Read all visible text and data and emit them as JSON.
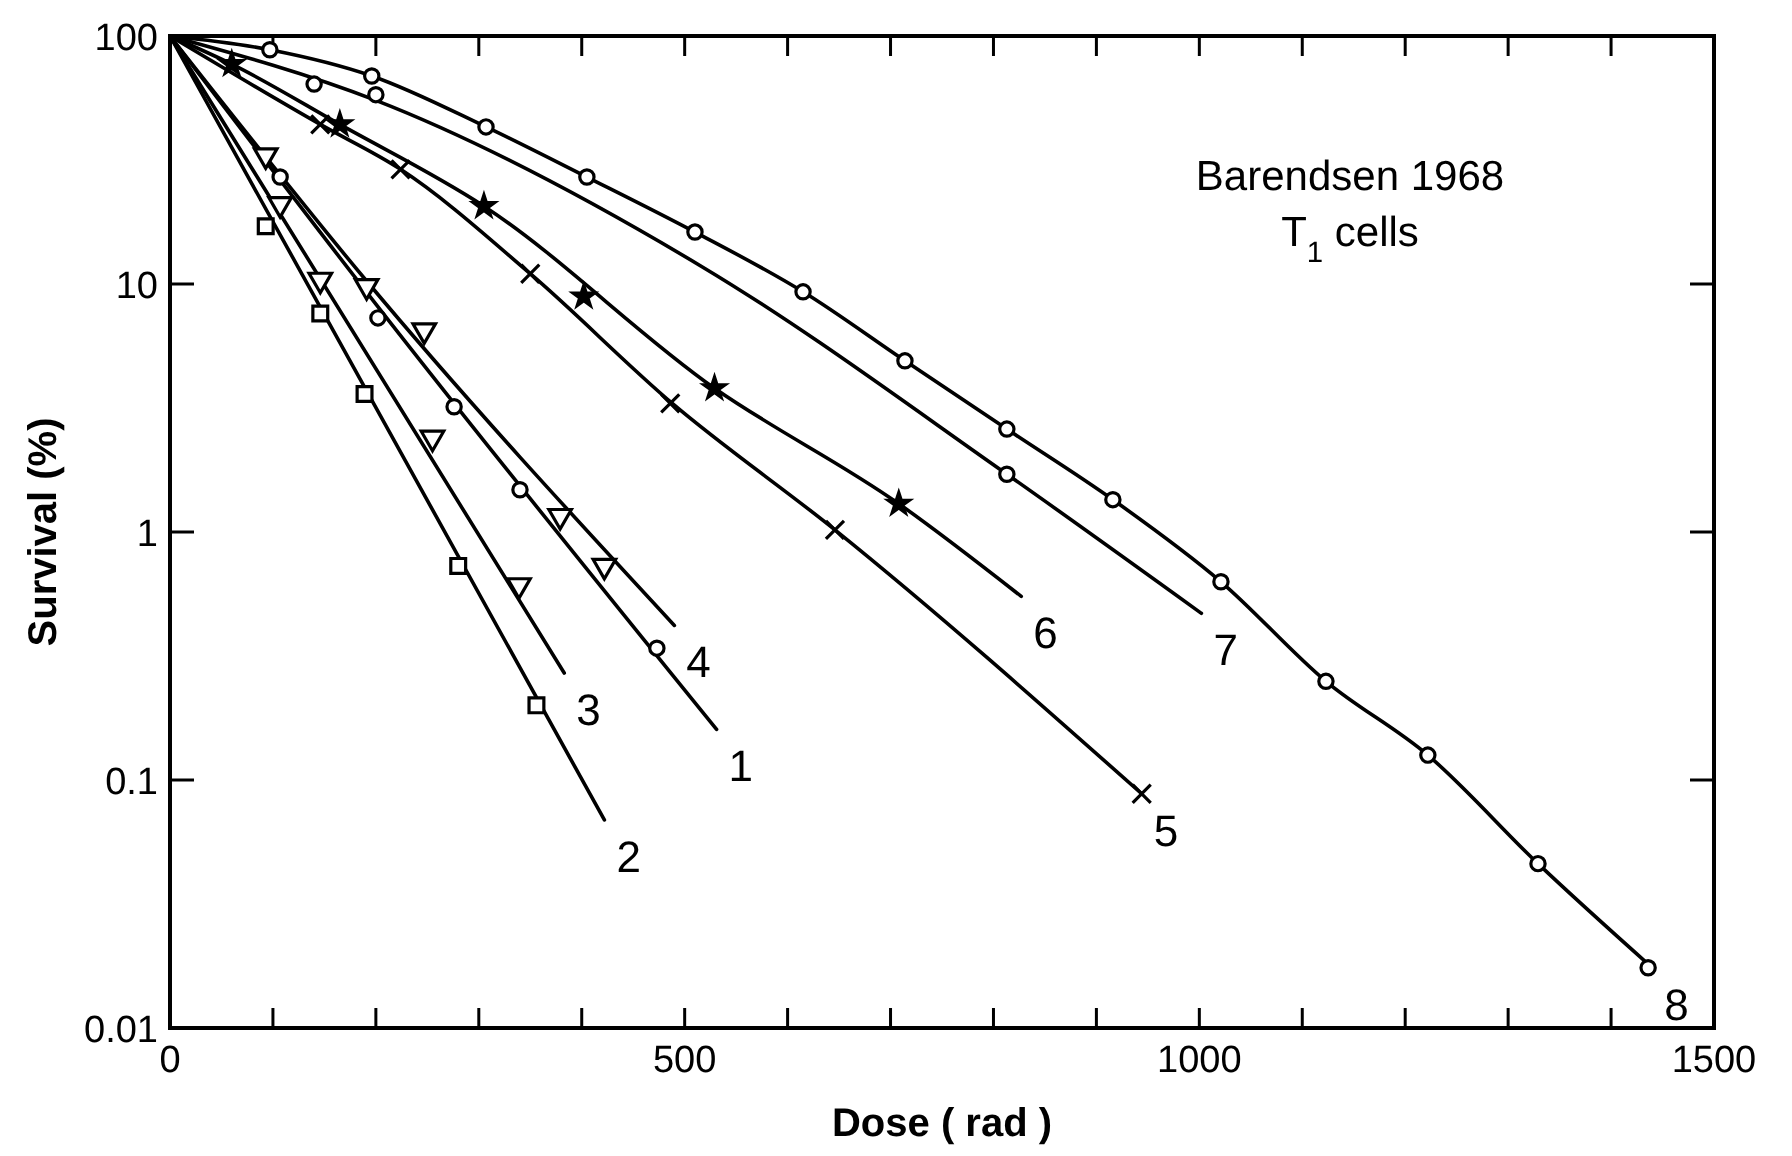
{
  "chart_data": {
    "type": "line",
    "xlabel": "Dose ( rad )",
    "ylabel": "Survival (%)",
    "log": "y",
    "grid": false,
    "xlim": [
      0,
      1500
    ],
    "ylim": [
      0.01,
      100
    ],
    "xticks": [
      0,
      {
        "value": 100,
        "label": null
      },
      {
        "value": 200,
        "label": null
      },
      {
        "value": 300,
        "label": null
      },
      {
        "value": 400,
        "label": null
      },
      500,
      {
        "value": 600,
        "label": null
      },
      {
        "value": 700,
        "label": null
      },
      {
        "value": 800,
        "label": null
      },
      {
        "value": 900,
        "label": null
      },
      1000,
      {
        "value": 1100,
        "label": null
      },
      {
        "value": 1200,
        "label": null
      },
      {
        "value": 1300,
        "label": null
      },
      {
        "value": 1400,
        "label": null
      },
      1500
    ],
    "yticks": [
      0.01,
      0.1,
      1,
      10,
      100
    ],
    "annotations": [
      "Barendsen 1968",
      "T$_{1}$ cells"
    ],
    "series": [
      {
        "name": "2",
        "color": "#000000",
        "marker": "none",
        "x": [
          0,
          422
        ],
        "values": [
          100,
          0.069
        ]
      },
      {
        "name": "3",
        "color": "#000000",
        "marker": "none",
        "x": [
          0,
          383
        ],
        "values": [
          100,
          0.27
        ]
      },
      {
        "name": "1",
        "color": "#000000",
        "marker": "none",
        "x": [
          0,
          200,
          531
        ],
        "values": [
          100,
          8.3,
          0.16
        ]
      },
      {
        "name": "4",
        "color": "#000000",
        "marker": "none",
        "x": [
          0,
          190,
          490
        ],
        "values": [
          100,
          10.4,
          0.42
        ]
      },
      {
        "name": "5",
        "color": "#000000",
        "marker": "none",
        "x": [
          0,
          146,
          224,
          350,
          488,
          646,
          944
        ],
        "values": [
          100,
          44,
          29,
          11,
          3.3,
          1.02,
          0.088
        ]
      },
      {
        "name": "6",
        "color": "#000000",
        "marker": "none",
        "x": [
          0,
          60,
          165,
          305,
          529,
          708,
          827
        ],
        "values": [
          100,
          77,
          44,
          20.6,
          3.8,
          1.3,
          0.55
        ]
      },
      {
        "name": "7",
        "color": "#000000",
        "marker": "none",
        "x": [
          0,
          200,
          516,
          813,
          1002
        ],
        "values": [
          100,
          55,
          11.8,
          1.71,
          0.47
        ]
      },
      {
        "name": "8",
        "color": "#000000",
        "marker": "none",
        "x": [
          0,
          97,
          196,
          307,
          405,
          510,
          615,
          714,
          813,
          916,
          1021,
          1123,
          1222,
          1329,
          1440
        ],
        "values": [
          100,
          88,
          69,
          43,
          27,
          16.2,
          9.3,
          4.9,
          2.6,
          1.35,
          0.63,
          0.25,
          0.126,
          0.046,
          0.0175
        ]
      },
      {
        "type": "scatter",
        "color": "#000000",
        "marker": "square",
        "x": [
          93,
          146,
          189,
          280,
          356
        ],
        "values": [
          17.1,
          7.6,
          3.6,
          0.73,
          0.2
        ]
      },
      {
        "type": "scatter",
        "color": "#000000",
        "marker": "triangle",
        "x": [
          107,
          146,
          255,
          339
        ],
        "values": [
          21,
          10.4,
          2.4,
          0.61
        ]
      },
      {
        "type": "scatter",
        "color": "#000000",
        "marker": "circle",
        "x": [
          107,
          202,
          276,
          340,
          473
        ],
        "values": [
          27,
          7.3,
          3.2,
          1.48,
          0.34
        ]
      },
      {
        "type": "scatter",
        "color": "#000000",
        "marker": "triangle",
        "x": [
          93,
          191,
          247,
          379,
          422
        ],
        "values": [
          33,
          9.8,
          6.5,
          1.16,
          0.73
        ]
      },
      {
        "type": "scatter",
        "color": "#000000",
        "marker": "cross",
        "x": [
          146,
          224,
          350,
          486,
          646,
          944
        ],
        "values": [
          44,
          29,
          11,
          3.3,
          1.02,
          0.088
        ]
      },
      {
        "type": "scatter",
        "color": "#000000",
        "marker": "star",
        "x": [
          60,
          165,
          305,
          402,
          529,
          708
        ],
        "values": [
          77,
          44,
          20.6,
          8.9,
          3.8,
          1.3
        ]
      },
      {
        "type": "scatter",
        "color": "#000000",
        "marker": "circle",
        "x": [
          140,
          200,
          813
        ],
        "values": [
          64,
          58,
          1.71
        ]
      },
      {
        "type": "scatter",
        "color": "#000000",
        "marker": "circle",
        "x": [
          97,
          196,
          307,
          405,
          510,
          615,
          714,
          813,
          916,
          1021,
          1123,
          1222,
          1329,
          1436
        ],
        "values": [
          88,
          69,
          43,
          27,
          16.2,
          9.3,
          4.9,
          2.6,
          1.35,
          0.63,
          0.25,
          0.126,
          0.046,
          0.0175
        ]
      }
    ]
  }
}
